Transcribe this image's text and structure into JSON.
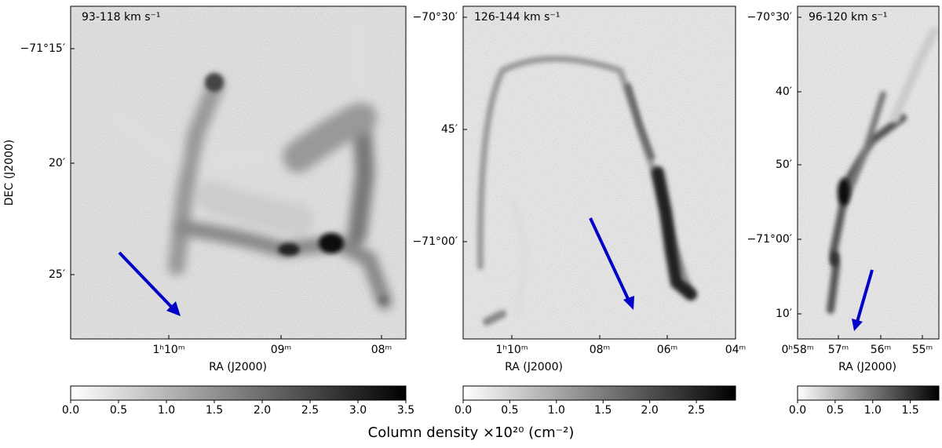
{
  "panels": [
    {
      "velocity_label": "93-118 km s⁻¹",
      "ra_ticks": [
        "1ʰ10ᵐ",
        "09ᵐ",
        "08ᵐ"
      ],
      "dec_ticks": [
        "−71°15′",
        "20′",
        "25′"
      ],
      "xlabel": "RA (J2000)",
      "ylabel": "DEC (J2000)",
      "colorbar": {
        "lim": [
          0,
          3.5
        ],
        "ticks": [
          {
            "value": 0,
            "label": "0.0"
          },
          0.5,
          {
            "value": 1,
            "label": "1.0"
          },
          1.5,
          {
            "value": 2,
            "label": "2.0"
          },
          2.5,
          {
            "value": 3,
            "label": "3.0"
          },
          3.5
        ]
      }
    },
    {
      "velocity_label": "126-144 km s⁻¹",
      "ra_ticks": [
        "1ʰ10ᵐ",
        "08ᵐ",
        "06ᵐ",
        "04ᵐ"
      ],
      "dec_ticks": [
        "−70°30′",
        "45′",
        "−71°00′"
      ],
      "xlabel": "RA (J2000)",
      "colorbar": {
        "lim": [
          0,
          2.92
        ],
        "ticks": [
          {
            "value": 0,
            "label": "0.0"
          },
          0.5,
          {
            "value": 1,
            "label": "1.0"
          },
          1.5,
          {
            "value": 2,
            "label": "2.0"
          },
          2.5
        ]
      }
    },
    {
      "velocity_label": "96-120 km s⁻¹",
      "ra_ticks": [
        "0ʰ58ᵐ",
        "57ᵐ",
        "56ᵐ",
        "55ᵐ"
      ],
      "dec_ticks": [
        "−70°30′",
        "40′",
        "50′",
        "−71°00′",
        "10′"
      ],
      "xlabel": "RA (J2000)",
      "colorbar": {
        "lim": [
          0,
          1.88
        ],
        "ticks": [
          {
            "value": 0,
            "label": "0.0"
          },
          0.5,
          {
            "value": 1,
            "label": "1.0"
          },
          1.5
        ]
      }
    }
  ],
  "colorbar_label": "Column density ×10²⁰ (cm⁻²)"
}
